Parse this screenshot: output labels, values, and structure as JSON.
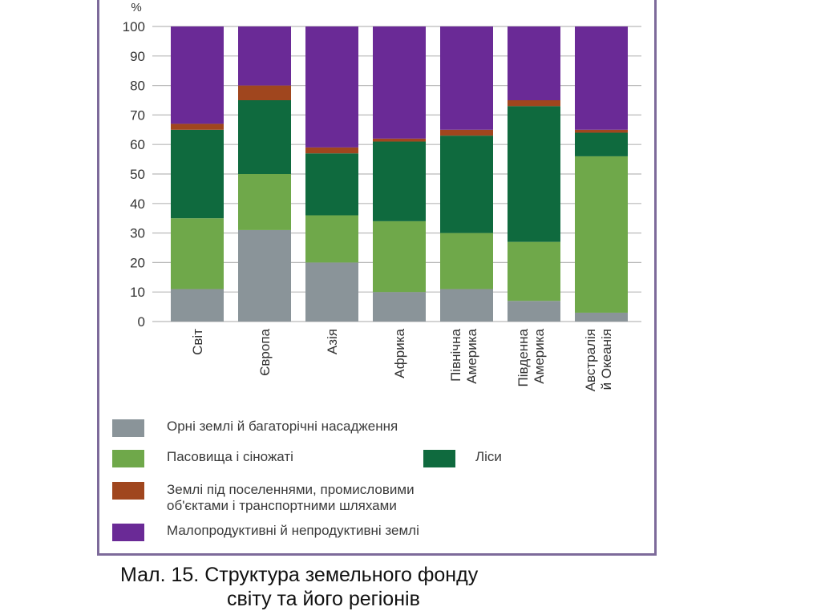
{
  "chart_data": {
    "type": "bar",
    "stacked": true,
    "y_unit": "%",
    "ylim": [
      0,
      100
    ],
    "yticks": [
      0,
      10,
      20,
      30,
      40,
      50,
      60,
      70,
      80,
      90,
      100
    ],
    "grid": "horizontal",
    "categories": [
      [
        "Світ"
      ],
      [
        "Європа"
      ],
      [
        "Азія"
      ],
      [
        "Африка"
      ],
      [
        "Північна",
        "Америка"
      ],
      [
        "Південна",
        "Америка"
      ],
      [
        "Австралія",
        "й Океанія"
      ]
    ],
    "series": [
      {
        "name": "Орні землі й багаторічні насадження",
        "color": "#8a9499",
        "values": [
          11,
          31,
          20,
          10,
          11,
          7,
          3
        ]
      },
      {
        "name": "Пасовища і сіножаті",
        "color": "#6fa84a",
        "values": [
          24,
          19,
          16,
          24,
          19,
          20,
          53
        ]
      },
      {
        "name": "Ліси",
        "color": "#0f6a3e",
        "values": [
          30,
          25,
          21,
          27,
          33,
          46,
          8
        ]
      },
      {
        "name": "Землі під поселеннями, промисловими\nоб'єктами і транспортними шляхами",
        "color": "#a0461e",
        "values": [
          2,
          5,
          2,
          1,
          2,
          2,
          1
        ]
      },
      {
        "name": "Малопродуктивні й непродуктивні землі",
        "color": "#6a2a96",
        "values": [
          33,
          20,
          41,
          38,
          35,
          25,
          35
        ]
      }
    ]
  },
  "caption": {
    "line1": "Мал. 15. Структура земельного фонду",
    "line2": "світу та його регіонів"
  }
}
